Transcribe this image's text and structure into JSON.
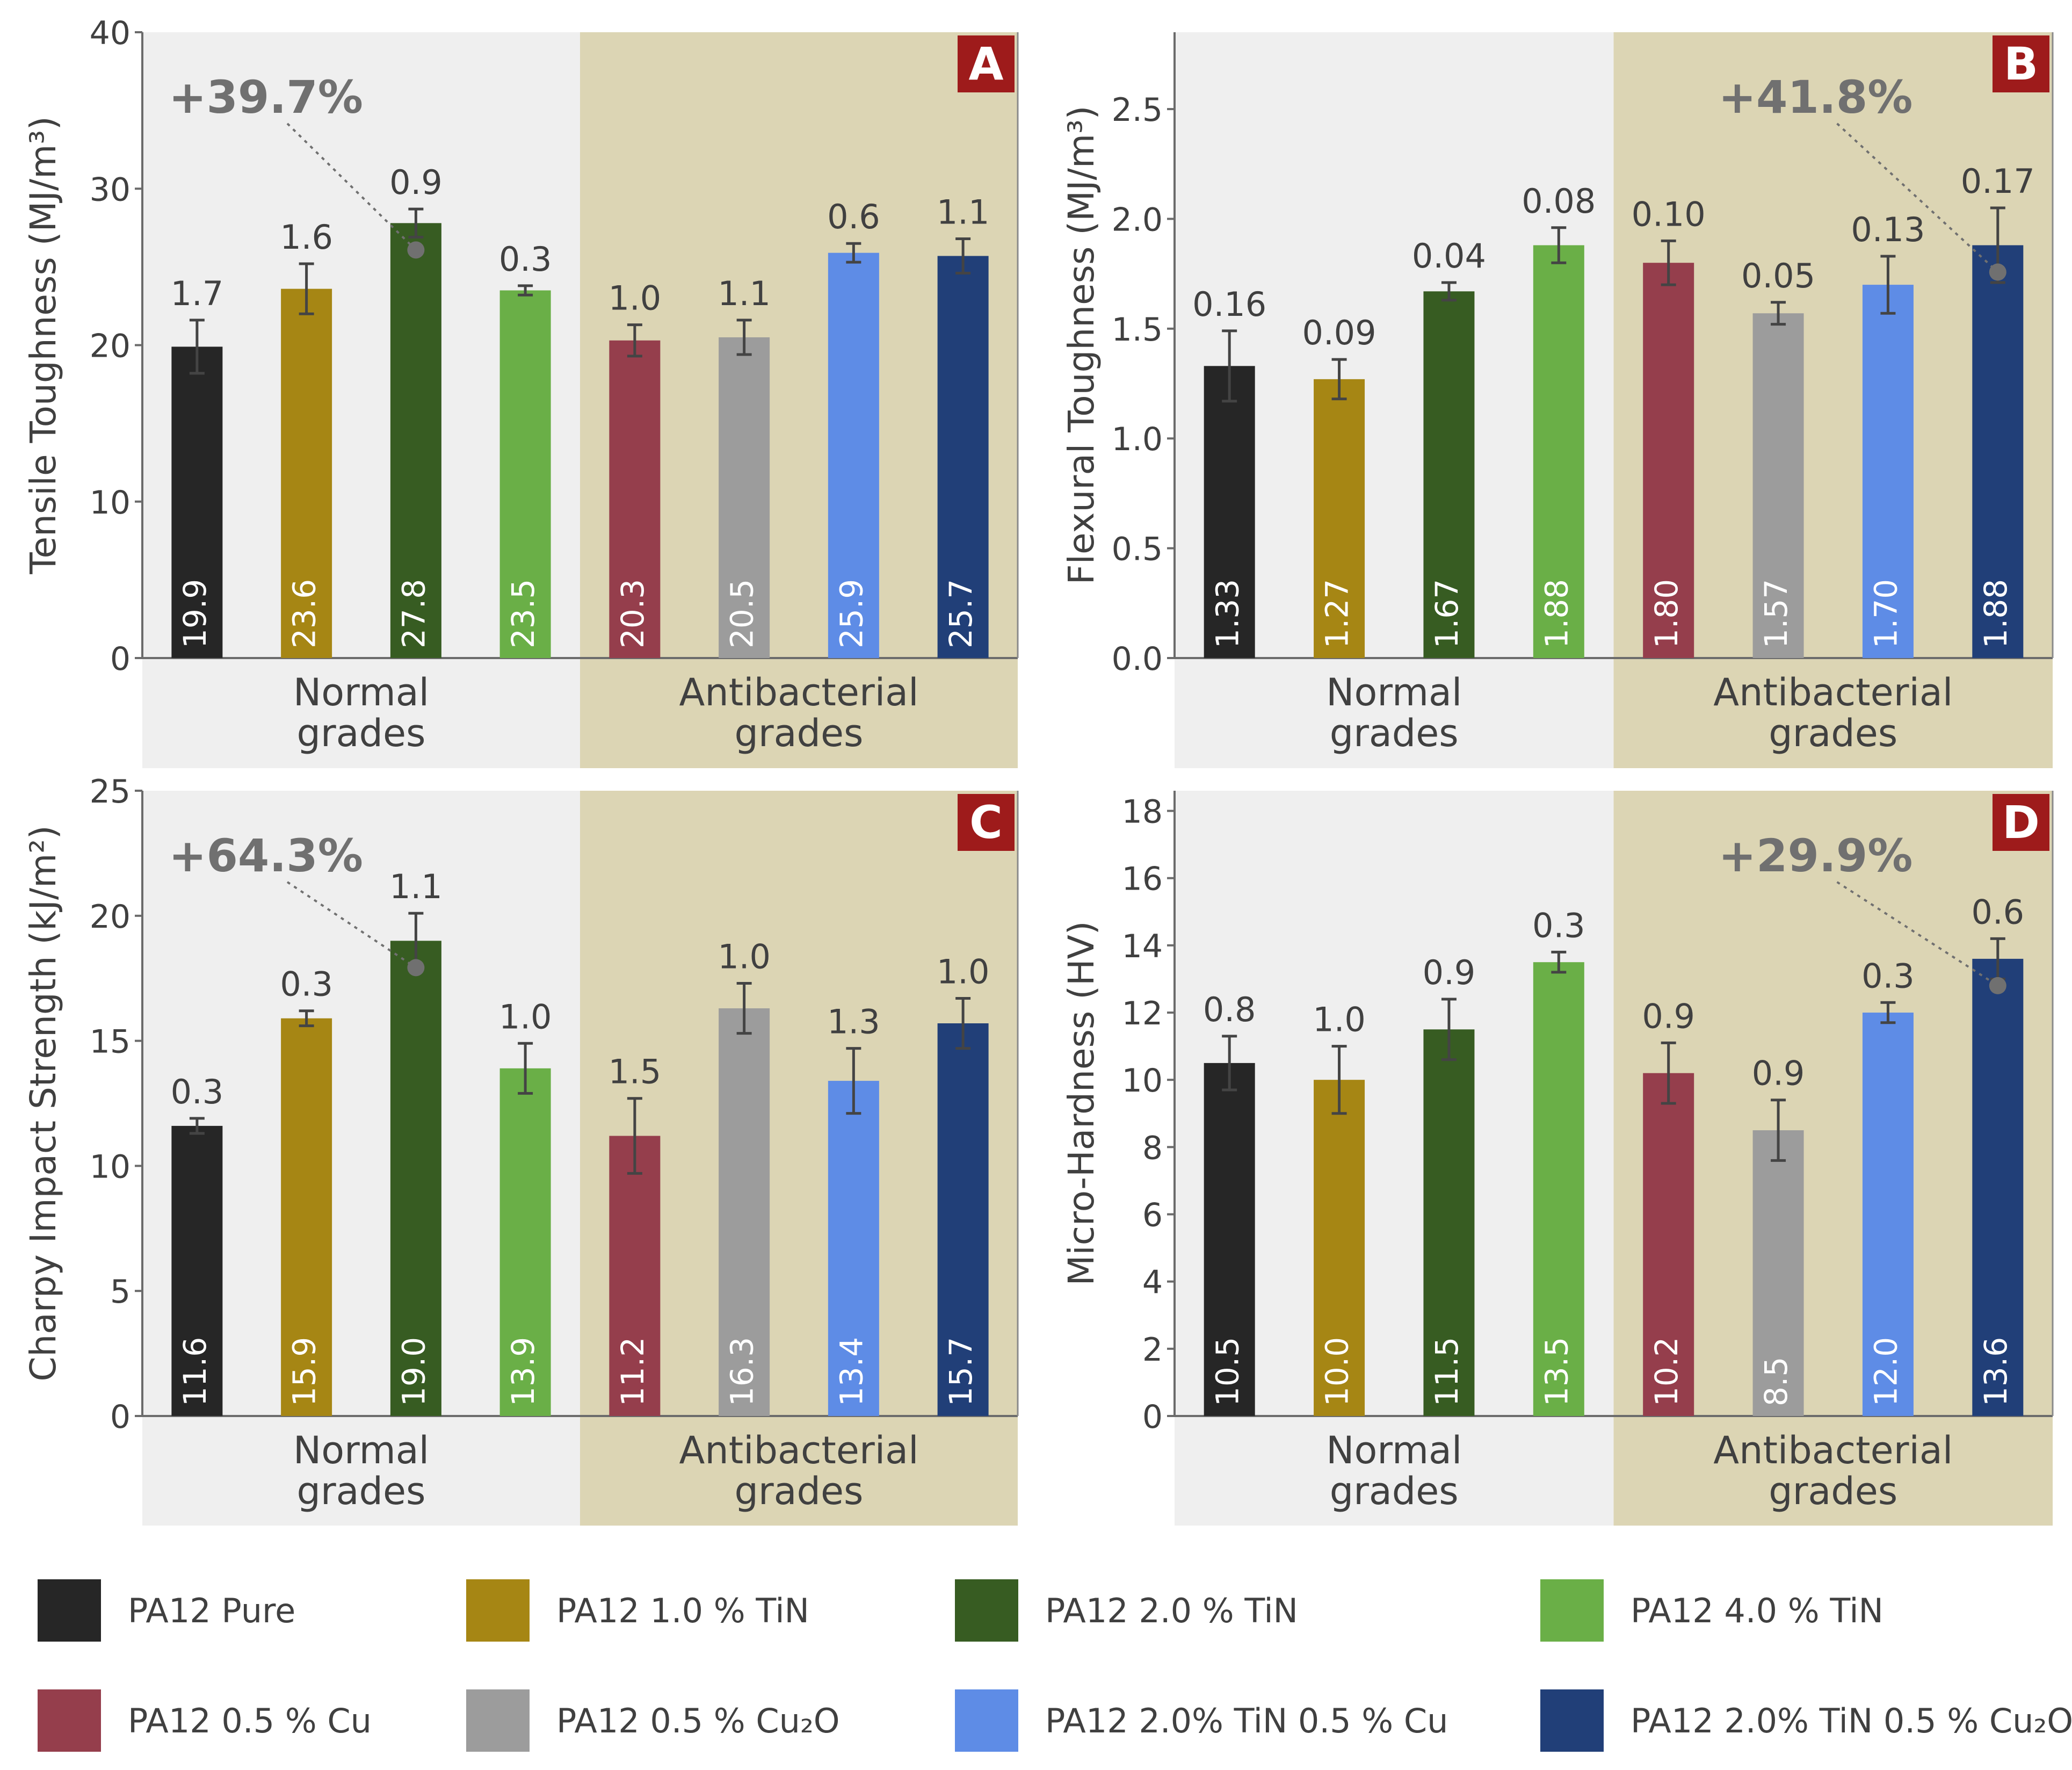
{
  "series": [
    {
      "name": "PA12 Pure",
      "color": "#262626"
    },
    {
      "name": "PA12 1.0 % TiN",
      "color": "#A68614"
    },
    {
      "name": "PA12 2.0 % TiN",
      "color": "#375C22"
    },
    {
      "name": "PA12 4.0 % TiN",
      "color": "#6AAF47"
    },
    {
      "name": "PA12 0.5 % Cu",
      "color": "#953E4C"
    },
    {
      "name": "PA12 0.5 % Cu₂O",
      "color": "#9C9C9C"
    },
    {
      "name": "PA12 2.0% TiN 0.5 % Cu",
      "color": "#5E8CE6"
    },
    {
      "name": "PA12 2.0% TiN 0.5 % Cu₂O",
      "color": "#213F78"
    }
  ],
  "group_labels": {
    "normal": [
      "Normal",
      "grades"
    ],
    "antibacterial": [
      "Antibacterial",
      "grades"
    ]
  },
  "colors": {
    "normal_bg": "#EFEFEF",
    "antibacterial_bg": "#DCD5B4",
    "badge_bg": "#9E1B1B",
    "badge_text": "#FFFFFF",
    "annotation": "#707070",
    "error_bar": "#444444"
  },
  "chart_data": [
    {
      "type": "bar",
      "panel": "A",
      "ylabel": "Tensile Toughness (MJ/m³)",
      "ylim": [
        0,
        40
      ],
      "yticks": [
        "0",
        "10",
        "20",
        "30",
        "40"
      ],
      "categories": [
        "PA12 Pure",
        "PA12 1.0 % TiN",
        "PA12 2.0 % TiN",
        "PA12 4.0 % TiN",
        "PA12 0.5 % Cu",
        "PA12 0.5 % Cu₂O",
        "PA12 2.0% TiN 0.5 % Cu",
        "PA12 2.0% TiN 0.5 % Cu₂O"
      ],
      "values": [
        19.9,
        23.6,
        27.8,
        23.5,
        20.3,
        20.5,
        25.9,
        25.7
      ],
      "value_labels": [
        "19.9",
        "23.6",
        "27.8",
        "23.5",
        "20.3",
        "20.5",
        "25.9",
        "25.7"
      ],
      "errors": [
        1.7,
        1.6,
        0.9,
        0.3,
        1.0,
        1.1,
        0.6,
        1.1
      ],
      "error_labels": [
        "1.7",
        "1.6",
        "0.9",
        "0.3",
        "1.0",
        "1.1",
        "0.6",
        "1.1"
      ],
      "annotation": {
        "text": "+39.7%",
        "bar_index": 2
      }
    },
    {
      "type": "bar",
      "panel": "B",
      "ylabel": "Flexural Toughness (MJ/m³)",
      "ylim": [
        0,
        2.85
      ],
      "yticks": [
        "0.0",
        "0.5",
        "1.0",
        "1.5",
        "2.0",
        "2.5"
      ],
      "categories": [
        "PA12 Pure",
        "PA12 1.0 % TiN",
        "PA12 2.0 % TiN",
        "PA12 4.0 % TiN",
        "PA12 0.5 % Cu",
        "PA12 0.5 % Cu₂O",
        "PA12 2.0% TiN 0.5 % Cu",
        "PA12 2.0% TiN 0.5 % Cu₂O"
      ],
      "values": [
        1.33,
        1.27,
        1.67,
        1.88,
        1.8,
        1.57,
        1.7,
        1.88
      ],
      "value_labels": [
        "1.33",
        "1.27",
        "1.67",
        "1.88",
        "1.80",
        "1.57",
        "1.70",
        "1.88"
      ],
      "errors": [
        0.16,
        0.09,
        0.04,
        0.08,
        0.1,
        0.05,
        0.13,
        0.17
      ],
      "error_labels": [
        "0.16",
        "0.09",
        "0.04",
        "0.08",
        "0.10",
        "0.05",
        "0.13",
        "0.17"
      ],
      "annotation": {
        "text": "+41.8%",
        "bar_index": 7
      }
    },
    {
      "type": "bar",
      "panel": "C",
      "ylabel": "Charpy Impact Strength (kJ/m²)",
      "ylim": [
        0,
        25
      ],
      "yticks": [
        "0",
        "5",
        "10",
        "15",
        "20",
        "25"
      ],
      "categories": [
        "PA12 Pure",
        "PA12 1.0 % TiN",
        "PA12 2.0 % TiN",
        "PA12 4.0 % TiN",
        "PA12 0.5 % Cu",
        "PA12 0.5 % Cu₂O",
        "PA12 2.0% TiN 0.5 % Cu",
        "PA12 2.0% TiN 0.5 % Cu₂O"
      ],
      "values": [
        11.6,
        15.9,
        19.0,
        13.9,
        11.2,
        16.3,
        13.4,
        15.7
      ],
      "value_labels": [
        "11.6",
        "15.9",
        "19.0",
        "13.9",
        "11.2",
        "16.3",
        "13.4",
        "15.7"
      ],
      "errors": [
        0.3,
        0.3,
        1.1,
        1.0,
        1.5,
        1.0,
        1.3,
        1.0
      ],
      "error_labels": [
        "0.3",
        "0.3",
        "1.1",
        "1.0",
        "1.5",
        "1.0",
        "1.3",
        "1.0"
      ],
      "annotation": {
        "text": "+64.3%",
        "bar_index": 2
      }
    },
    {
      "type": "bar",
      "panel": "D",
      "ylabel": "Micro-Hardness (HV)",
      "ylim": [
        0,
        18.6
      ],
      "yticks": [
        "0",
        "2",
        "4",
        "6",
        "8",
        "10",
        "12",
        "14",
        "16",
        "18"
      ],
      "categories": [
        "PA12 Pure",
        "PA12 1.0 % TiN",
        "PA12 2.0 % TiN",
        "PA12 4.0 % TiN",
        "PA12 0.5 % Cu",
        "PA12 0.5 % Cu₂O",
        "PA12 2.0% TiN 0.5 % Cu",
        "PA12 2.0% TiN 0.5 % Cu₂O"
      ],
      "values": [
        10.5,
        10.0,
        11.5,
        13.5,
        10.2,
        8.5,
        12.0,
        13.6
      ],
      "value_labels": [
        "10.5",
        "10.0",
        "11.5",
        "13.5",
        "10.2",
        "8.5",
        "12.0",
        "13.6"
      ],
      "errors": [
        0.8,
        1.0,
        0.9,
        0.3,
        0.9,
        0.9,
        0.3,
        0.6
      ],
      "error_labels": [
        "0.8",
        "1.0",
        "0.9",
        "0.3",
        "0.9",
        "0.9",
        "0.3",
        "0.6"
      ],
      "annotation": {
        "text": "+29.9%",
        "bar_index": 7
      }
    }
  ]
}
